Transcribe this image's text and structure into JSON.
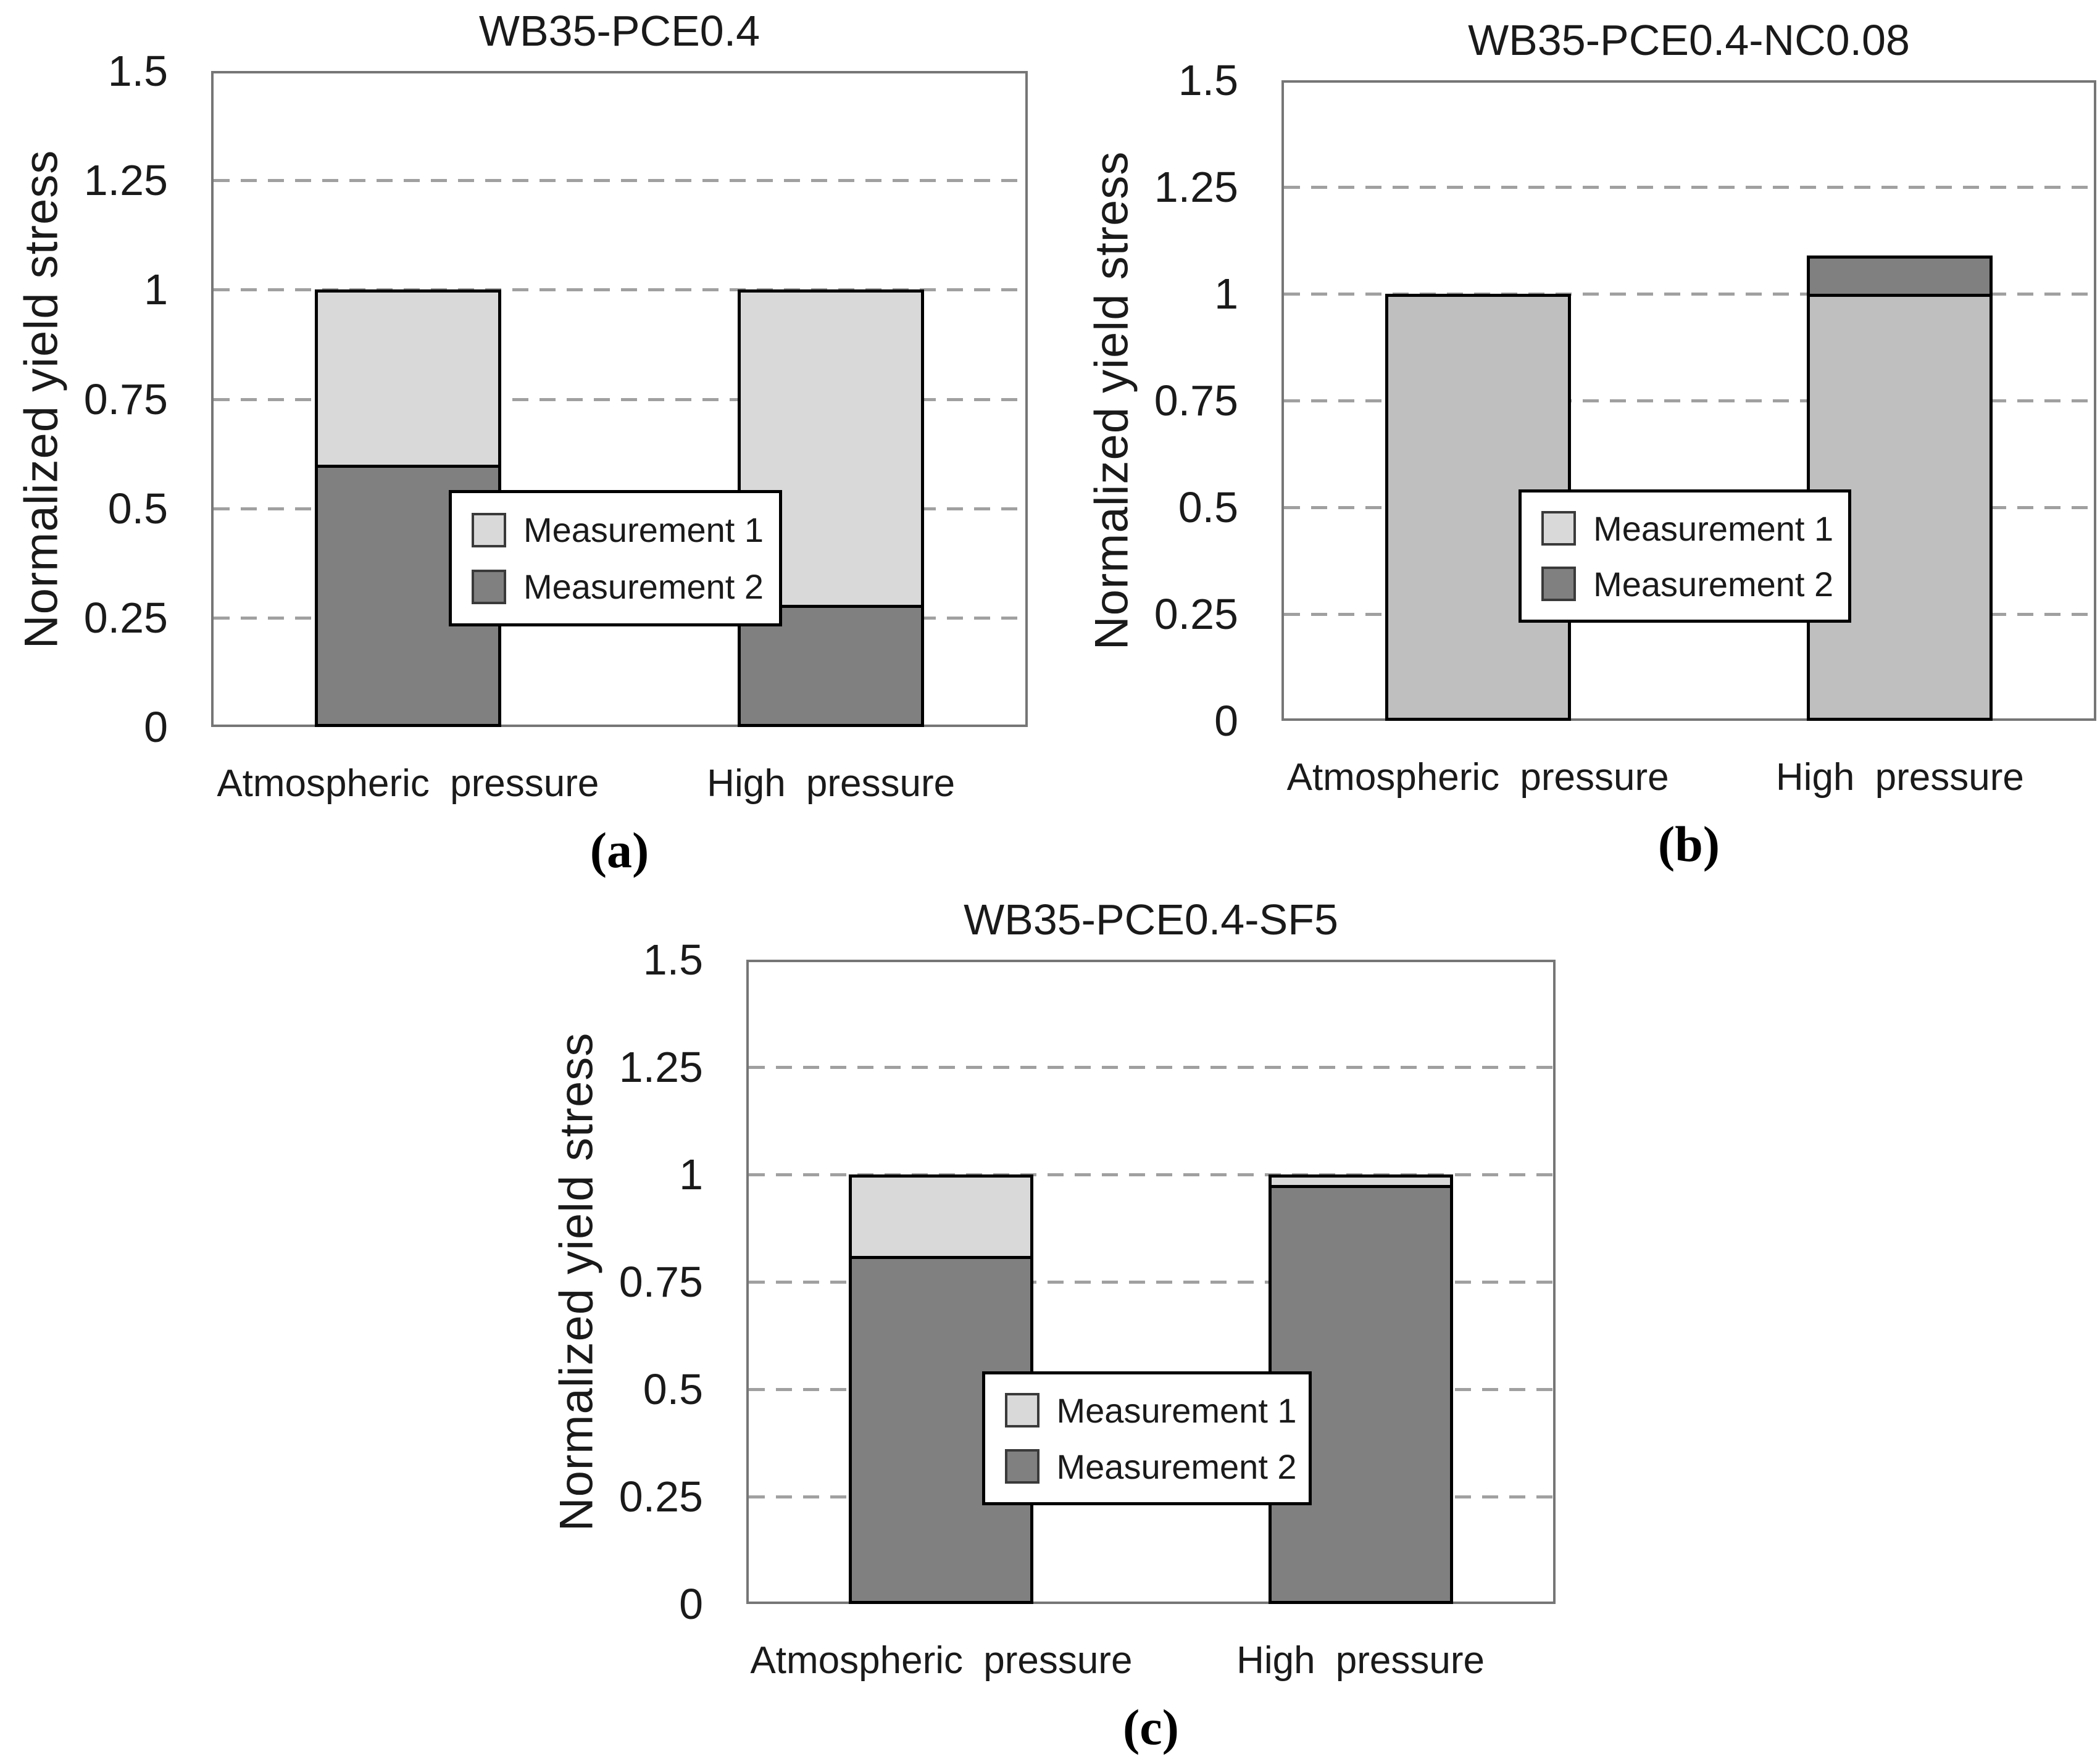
{
  "figure": {
    "ylabel": "Normalized yield stress",
    "categories": [
      "Atmospheric pressure",
      "High pressure"
    ],
    "ytick_labels": [
      "0",
      "0.25",
      "0.5",
      "0.75",
      "1",
      "1.25",
      "1.5"
    ],
    "legend_labels": [
      "Measurement 1",
      "Measurement 2"
    ]
  },
  "colors": {
    "background": "#ffffff",
    "frame": "#767676",
    "grid": "#a0a0a0",
    "bar_outline": "#000000",
    "text": "#1a1a1a",
    "light_gray": "#d9d9d9",
    "silver": "#bfbfbf",
    "dark_gray": "#808080"
  },
  "chart_data": [
    {
      "type": "bar",
      "panel": "a",
      "title": "WB35-PCE0.4",
      "caption": "(a)",
      "ylabel": "Normalized yield stress",
      "categories": [
        "Atmospheric pressure",
        "High pressure"
      ],
      "ylim": [
        0,
        1.5
      ],
      "ytick_values": [
        0,
        0.25,
        0.5,
        0.75,
        1,
        1.25,
        1.5
      ],
      "ytick_labels": [
        "0",
        "0.25",
        "0.5",
        "0.75",
        "1",
        "1.25",
        "1.5"
      ],
      "grid": "dashed-horizontal",
      "legend_position": "center",
      "front_series": "Measurement 2",
      "series": [
        {
          "name": "Measurement 1",
          "values": [
            1.0,
            1.0
          ],
          "fill": "#d9d9d9",
          "swatch": "#d9d9d9"
        },
        {
          "name": "Measurement 2",
          "values": [
            0.6,
            0.28
          ],
          "fill": "#808080",
          "swatch": "#808080"
        }
      ]
    },
    {
      "type": "bar",
      "panel": "b",
      "title": "WB35-PCE0.4-NC0.08",
      "caption": "(b)",
      "ylabel": "Normalized yield stress",
      "categories": [
        "Atmospheric pressure",
        "High pressure"
      ],
      "ylim": [
        0,
        1.5
      ],
      "ytick_values": [
        0,
        0.25,
        0.5,
        0.75,
        1,
        1.25,
        1.5
      ],
      "ytick_labels": [
        "0",
        "0.25",
        "0.5",
        "0.75",
        "1",
        "1.25",
        "1.5"
      ],
      "grid": "dashed-horizontal",
      "legend_position": "center",
      "front_series": "Measurement 1",
      "series": [
        {
          "name": "Measurement 1",
          "values": [
            1.0,
            1.0
          ],
          "fill": "#bfbfbf",
          "swatch": "#d9d9d9"
        },
        {
          "name": "Measurement 2",
          "values": [
            1.0,
            1.09
          ],
          "fill": "#808080",
          "swatch": "#808080"
        }
      ]
    },
    {
      "type": "bar",
      "panel": "c",
      "title": "WB35-PCE0.4-SF5",
      "caption": "(c)",
      "ylabel": "Normalized yield stress",
      "categories": [
        "Atmospheric pressure",
        "High pressure"
      ],
      "ylim": [
        0,
        1.5
      ],
      "ytick_values": [
        0,
        0.25,
        0.5,
        0.75,
        1,
        1.25,
        1.5
      ],
      "ytick_labels": [
        "0",
        "0.25",
        "0.5",
        "0.75",
        "1",
        "1.25",
        "1.5"
      ],
      "grid": "dashed-horizontal",
      "legend_position": "center",
      "front_series": "Measurement 2",
      "series": [
        {
          "name": "Measurement 1",
          "values": [
            1.0,
            1.0
          ],
          "fill": "#d9d9d9",
          "swatch": "#d9d9d9"
        },
        {
          "name": "Measurement 2",
          "values": [
            0.81,
            0.975
          ],
          "fill": "#808080",
          "swatch": "#808080"
        }
      ]
    }
  ]
}
